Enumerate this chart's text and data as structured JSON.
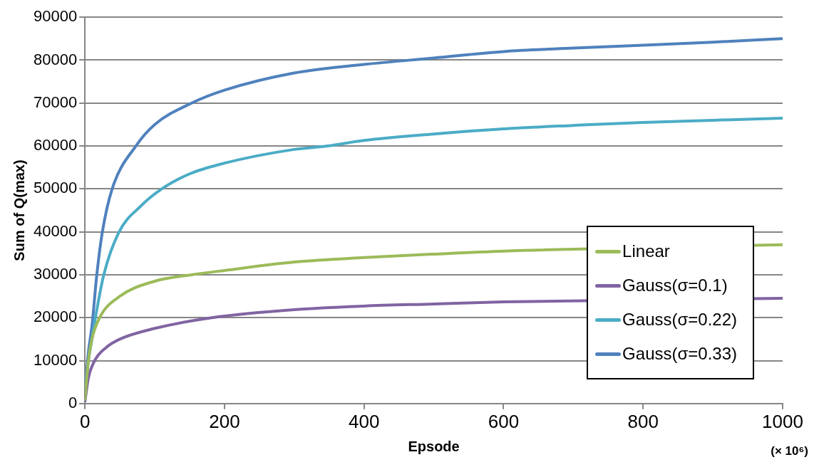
{
  "chart_data": {
    "type": "line",
    "xlabel": "Epsode",
    "ylabel": "Sum of Q(max)",
    "annotations": [
      "(× 10⁶)"
    ],
    "xlim": [
      0,
      1000
    ],
    "xticks": [
      0,
      200,
      400,
      600,
      800,
      1000
    ],
    "ylim": [
      0,
      90000
    ],
    "yticks": [
      0,
      10000,
      20000,
      30000,
      40000,
      50000,
      60000,
      70000,
      80000,
      90000
    ],
    "grid": "y",
    "legend": "bottom right",
    "marker": "none",
    "line_style": "solid",
    "series": [
      {
        "name": "Linear",
        "color": "#9bbb59",
        "x": [
          0,
          5,
          10,
          21,
          50,
          100,
          153,
          200,
          303,
          400,
          500,
          600,
          700,
          800,
          900,
          1000
        ],
        "values": [
          1000,
          10000,
          15000,
          20000,
          25000,
          28500,
          30000,
          31000,
          33000,
          34000,
          34800,
          35500,
          null,
          null,
          null,
          37000
        ]
      },
      {
        "name": "Gauss(σ=0.1)",
        "color": "#8064a2",
        "x": [
          0,
          5,
          14,
          30,
          50,
          100,
          182,
          303,
          400,
          500,
          600,
          700,
          800,
          900,
          1000
        ],
        "values": [
          500,
          6000,
          10000,
          13000,
          15000,
          17500,
          20000,
          21900,
          22700,
          23200,
          23700,
          null,
          null,
          null,
          24500
        ]
      },
      {
        "name": "Gauss(σ=0.22)",
        "color": "#4bacc6",
        "x": [
          0,
          5,
          10,
          15,
          27,
          49,
          80,
          110,
          150,
          200,
          300,
          348,
          400,
          500,
          600,
          700,
          800,
          900,
          1000
        ],
        "values": [
          3000,
          10000,
          15000,
          20000,
          30000,
          40000,
          46000,
          50000,
          53500,
          56000,
          59200,
          60000,
          61300,
          62800,
          64000,
          64800,
          65500,
          66000,
          66500
        ]
      },
      {
        "name": "Gauss(σ=0.33)",
        "color": "#4f81bd",
        "x": [
          0,
          5,
          10,
          17,
          25,
          39,
          73,
          100,
          153,
          200,
          300,
          400,
          500,
          600,
          700,
          800,
          900,
          1000
        ],
        "values": [
          3000,
          12000,
          18000,
          30000,
          40000,
          50000,
          60000,
          65000,
          70000,
          73000,
          77000,
          79000,
          80500,
          82000,
          82800,
          83500,
          84200,
          85000
        ]
      }
    ]
  }
}
